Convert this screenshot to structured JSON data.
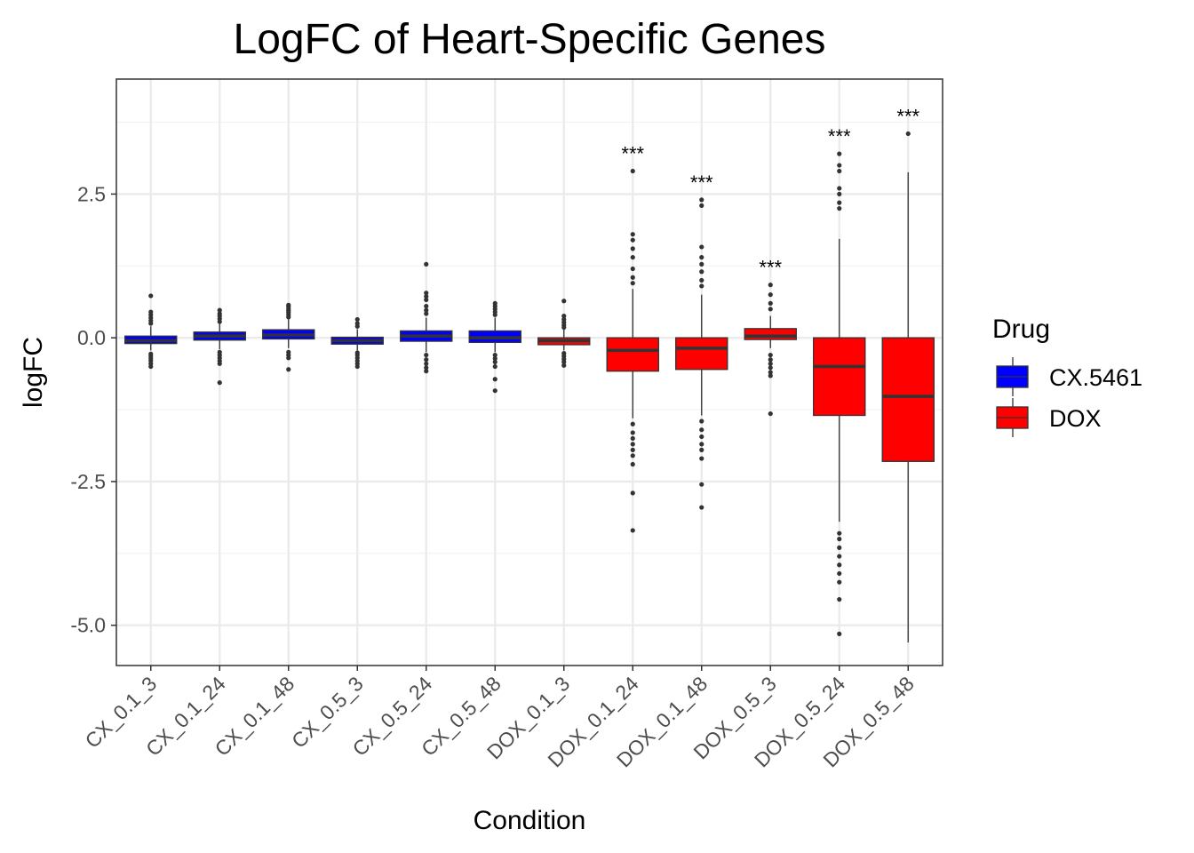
{
  "chart_data": {
    "type": "box",
    "title": "LogFC of Heart-Specific Genes",
    "xlabel": "Condition",
    "ylabel": "logFC",
    "ylim": [
      -5.7,
      4.5
    ],
    "y_ticks": [
      2.5,
      0.0,
      -2.5,
      -5.0
    ],
    "y_tick_labels": [
      "2.5",
      "0.0",
      "-2.5",
      "-5.0"
    ],
    "y_minor_gridlines": [
      3.75,
      1.25,
      -1.25,
      -3.75
    ],
    "grid": true,
    "legend": {
      "title": "Drug",
      "placement": "right",
      "entries": [
        {
          "label": "CX.5461",
          "color": "#0000ff"
        },
        {
          "label": "DOX",
          "color": "#ff0000"
        }
      ]
    },
    "categories": [
      "CX_0.1_3",
      "CX_0.1_24",
      "CX_0.1_48",
      "CX_0.5_3",
      "CX_0.5_24",
      "CX_0.5_48",
      "DOX_0.1_3",
      "DOX_0.1_24",
      "DOX_0.1_48",
      "DOX_0.5_3",
      "DOX_0.5_24",
      "DOX_0.5_48"
    ],
    "boxes": [
      {
        "category": "CX_0.1_3",
        "drug": "CX.5461",
        "q1": -0.1,
        "median": -0.05,
        "q3": 0.03,
        "whisker_low": -0.22,
        "whisker_high": 0.2,
        "outliers": [
          0.73,
          0.45,
          0.4,
          0.35,
          0.3,
          0.25,
          -0.28,
          -0.32,
          -0.36,
          -0.4,
          -0.45,
          -0.5
        ],
        "significance": ""
      },
      {
        "category": "CX_0.1_24",
        "drug": "CX.5461",
        "q1": -0.04,
        "median": 0.03,
        "q3": 0.1,
        "whisker_low": -0.2,
        "whisker_high": 0.25,
        "outliers": [
          0.48,
          0.42,
          0.38,
          0.33,
          0.28,
          -0.25,
          -0.3,
          -0.35,
          -0.4,
          -0.45,
          -0.78
        ],
        "significance": ""
      },
      {
        "category": "CX_0.1_48",
        "drug": "CX.5461",
        "q1": -0.02,
        "median": 0.05,
        "q3": 0.14,
        "whisker_low": -0.18,
        "whisker_high": 0.32,
        "outliers": [
          0.57,
          0.54,
          0.5,
          0.47,
          0.44,
          0.4,
          0.36,
          -0.25,
          -0.3,
          -0.35,
          -0.55
        ],
        "significance": ""
      },
      {
        "category": "CX_0.5_3",
        "drug": "CX.5461",
        "q1": -0.11,
        "median": -0.05,
        "q3": 0.01,
        "whisker_low": -0.22,
        "whisker_high": 0.15,
        "outliers": [
          0.32,
          0.25,
          0.2,
          -0.26,
          -0.3,
          -0.35,
          -0.4,
          -0.45,
          -0.5
        ],
        "significance": ""
      },
      {
        "category": "CX_0.5_24",
        "drug": "CX.5461",
        "q1": -0.06,
        "median": 0.03,
        "q3": 0.12,
        "whisker_low": -0.25,
        "whisker_high": 0.35,
        "outliers": [
          1.28,
          0.78,
          0.72,
          0.66,
          0.55,
          0.48,
          0.42,
          -0.3,
          -0.38,
          -0.45,
          -0.52,
          -0.58
        ],
        "significance": ""
      },
      {
        "category": "CX_0.5_48",
        "drug": "CX.5461",
        "q1": -0.08,
        "median": 0.0,
        "q3": 0.12,
        "whisker_low": -0.25,
        "whisker_high": 0.35,
        "outliers": [
          0.6,
          0.55,
          0.5,
          0.45,
          0.4,
          -0.3,
          -0.36,
          -0.42,
          -0.5,
          -0.72,
          -0.92
        ],
        "significance": ""
      },
      {
        "category": "DOX_0.1_3",
        "drug": "DOX",
        "q1": -0.12,
        "median": -0.05,
        "q3": 0.0,
        "whisker_low": -0.22,
        "whisker_high": 0.15,
        "outliers": [
          0.64,
          0.38,
          0.32,
          0.27,
          0.22,
          0.18,
          -0.27,
          -0.32,
          -0.37,
          -0.42,
          -0.48
        ],
        "significance": ""
      },
      {
        "category": "DOX_0.1_24",
        "drug": "DOX",
        "q1": -0.58,
        "median": -0.22,
        "q3": 0.0,
        "whisker_low": -1.4,
        "whisker_high": 0.85,
        "outliers": [
          2.9,
          1.8,
          1.7,
          1.55,
          1.4,
          1.2,
          1.05,
          0.95,
          -1.5,
          -1.65,
          -1.75,
          -1.85,
          -1.95,
          -2.05,
          -2.2,
          -2.7,
          -3.35
        ],
        "significance": "***"
      },
      {
        "category": "DOX_0.1_48",
        "drug": "DOX",
        "q1": -0.55,
        "median": -0.18,
        "q3": 0.0,
        "whisker_low": -1.35,
        "whisker_high": 0.75,
        "outliers": [
          2.4,
          2.3,
          1.58,
          1.4,
          1.28,
          1.15,
          1.0,
          0.9,
          -1.45,
          -1.6,
          -1.72,
          -1.85,
          -1.95,
          -2.1,
          -2.55,
          -2.95
        ],
        "significance": "***"
      },
      {
        "category": "DOX_0.5_3",
        "drug": "DOX",
        "q1": -0.03,
        "median": 0.03,
        "q3": 0.16,
        "whisker_low": -0.18,
        "whisker_high": 0.38,
        "outliers": [
          0.92,
          0.75,
          0.6,
          0.5,
          -0.3,
          -0.38,
          -0.45,
          -0.52,
          -0.6,
          -0.66,
          -1.32
        ],
        "significance": "***"
      },
      {
        "category": "DOX_0.5_24",
        "drug": "DOX",
        "q1": -1.35,
        "median": -0.5,
        "q3": 0.0,
        "whisker_low": -3.2,
        "whisker_high": 1.72,
        "outliers": [
          3.2,
          3.0,
          2.9,
          2.6,
          2.5,
          2.35,
          2.25,
          -3.4,
          -3.5,
          -3.65,
          -3.8,
          -3.95,
          -4.1,
          -4.25,
          -4.55,
          -5.15
        ],
        "significance": "***"
      },
      {
        "category": "DOX_0.5_48",
        "drug": "DOX",
        "q1": -2.15,
        "median": -1.02,
        "q3": 0.0,
        "whisker_low": -5.3,
        "whisker_high": 2.88,
        "outliers": [
          3.55
        ],
        "significance": "***"
      }
    ]
  }
}
